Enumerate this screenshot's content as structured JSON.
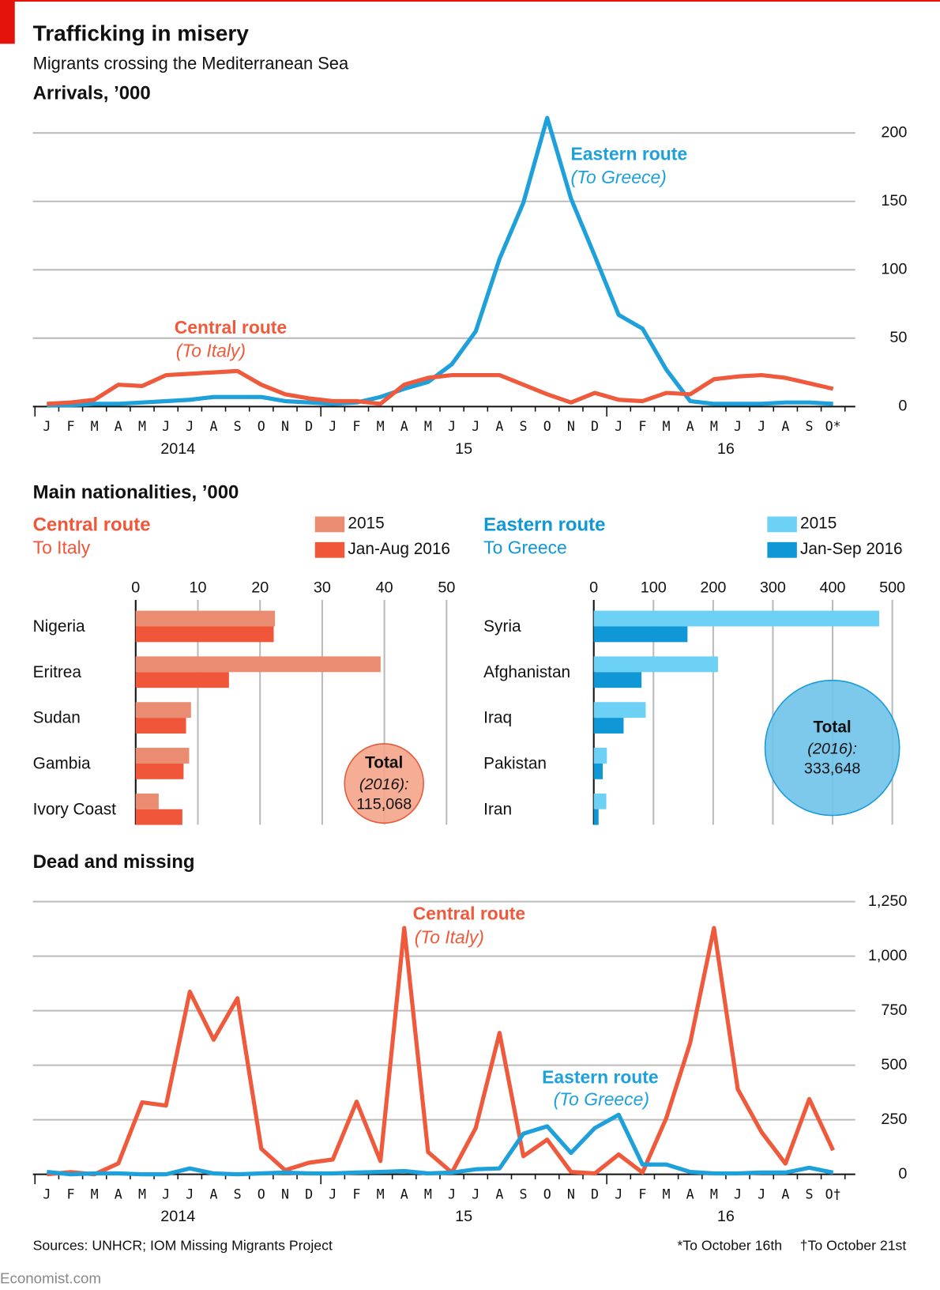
{
  "title": "Trafficking in misery",
  "subtitle": "Migrants crossing the Mediterranean Sea",
  "sources": "Sources: UNHCR; IOM Missing Migrants Project",
  "footnotes": [
    "*To October 16th",
    "†To October 21st"
  ],
  "brand": "Economist.com",
  "chart_data": [
    {
      "type": "line",
      "heading": "Arrivals, ’000",
      "categories": [
        "J",
        "F",
        "M",
        "A",
        "M",
        "J",
        "J",
        "A",
        "S",
        "O",
        "N",
        "D",
        "J",
        "F",
        "M",
        "A",
        "M",
        "J",
        "J",
        "A",
        "S",
        "O",
        "N",
        "D",
        "J",
        "F",
        "M",
        "A",
        "M",
        "J",
        "J",
        "A",
        "S",
        "O*"
      ],
      "years": [
        "2014",
        "15",
        "16"
      ],
      "series": [
        {
          "name": "Eastern route",
          "note": "(To Greece)",
          "color": "#1ea0db",
          "values": [
            1,
            1,
            2,
            2,
            3,
            4,
            5,
            7,
            7,
            7,
            4,
            3,
            2,
            3,
            7,
            13,
            18,
            31,
            55,
            108,
            149,
            211,
            152,
            110,
            67,
            57,
            27,
            4,
            2,
            2,
            2,
            3,
            3,
            2
          ]
        },
        {
          "name": "Central route",
          "note": "(To Italy)",
          "color": "#ef5a3c",
          "values": [
            2,
            3,
            5,
            16,
            15,
            23,
            24,
            25,
            26,
            16,
            9,
            6,
            4,
            4,
            2,
            16,
            21,
            23,
            23,
            23,
            16,
            9,
            3,
            10,
            5,
            4,
            10,
            9,
            20,
            22,
            23,
            21,
            17,
            13
          ]
        }
      ],
      "ylim": [
        0,
        212
      ],
      "yticks": [
        0,
        50,
        100,
        150,
        200
      ],
      "grid": true
    },
    {
      "type": "hbar",
      "heading": "Main nationalities, ’000",
      "title": "Central route",
      "subtitle": "To Italy",
      "categories": [
        "Nigeria",
        "Eritrea",
        "Sudan",
        "Gambia",
        "Ivory Coast"
      ],
      "series": [
        {
          "name": "2015",
          "color": "#e98c72",
          "values": [
            22.4,
            39.4,
            8.9,
            8.6,
            3.7
          ]
        },
        {
          "name": "Jan-Aug 2016",
          "color": "#ef563a",
          "values": [
            22.2,
            15,
            8.1,
            7.7,
            7.5
          ]
        }
      ],
      "xlim": [
        0,
        50
      ],
      "xticks": [
        0,
        10,
        20,
        30,
        40,
        50
      ],
      "grid": true,
      "total": {
        "label": "Total",
        "note": "(2016):",
        "value": 115068,
        "value_label": "115,068",
        "color": "#f4a48a",
        "stroke": "#e8583a"
      }
    },
    {
      "type": "hbar",
      "title": "Eastern route",
      "subtitle": "To Greece",
      "categories": [
        "Syria",
        "Afghanistan",
        "Iraq",
        "Pakistan",
        "Iran"
      ],
      "series": [
        {
          "name": "2015",
          "color": "#6dd0f5",
          "values": [
            478,
            208,
            87,
            22,
            21
          ]
        },
        {
          "name": "Jan-Sep 2016",
          "color": "#0f97d6",
          "values": [
            157,
            80,
            50,
            15,
            8
          ]
        }
      ],
      "xlim": [
        0,
        500
      ],
      "xticks": [
        0,
        100,
        200,
        300,
        400,
        500
      ],
      "grid": true,
      "total": {
        "label": "Total",
        "note": "(2016):",
        "value": 333648,
        "value_label": "333,648",
        "color": "#6fc3ea",
        "stroke": "#1a9bd7"
      }
    },
    {
      "type": "line",
      "heading": "Dead and missing",
      "categories": [
        "J",
        "F",
        "M",
        "A",
        "M",
        "J",
        "J",
        "A",
        "S",
        "O",
        "N",
        "D",
        "J",
        "F",
        "M",
        "A",
        "M",
        "J",
        "J",
        "A",
        "S",
        "O",
        "N",
        "D",
        "J",
        "F",
        "M",
        "A",
        "M",
        "J",
        "J",
        "A",
        "S",
        "O†"
      ],
      "years": [
        "2014",
        "15",
        "16"
      ],
      "series": [
        {
          "name": "Central route",
          "note": "(To Italy)",
          "color": "#ef5a3c",
          "values": [
            0,
            10,
            0,
            50,
            330,
            315,
            837,
            617,
            807,
            117,
            19,
            53,
            68,
            333,
            61,
            1129,
            102,
            8,
            212,
            648,
            83,
            159,
            11,
            4,
            91,
            8,
            258,
            602,
            1129,
            390,
            193,
            49,
            345,
            110
          ]
        },
        {
          "name": "Eastern route",
          "note": "(To Greece)",
          "color": "#1ea0db",
          "values": [
            11,
            0,
            4,
            4,
            0,
            0,
            27,
            4,
            0,
            4,
            8,
            4,
            4,
            8,
            11,
            15,
            4,
            8,
            23,
            27,
            186,
            220,
            98,
            212,
            273,
            45,
            45,
            11,
            4,
            4,
            8,
            8,
            30,
            8
          ]
        }
      ],
      "ylim": [
        0,
        1250
      ],
      "yticks": [
        0,
        250,
        500,
        750,
        {
          "value": 1000,
          "label": "1,000"
        },
        {
          "value": 1250,
          "label": "1,250"
        }
      ],
      "grid": true
    }
  ]
}
